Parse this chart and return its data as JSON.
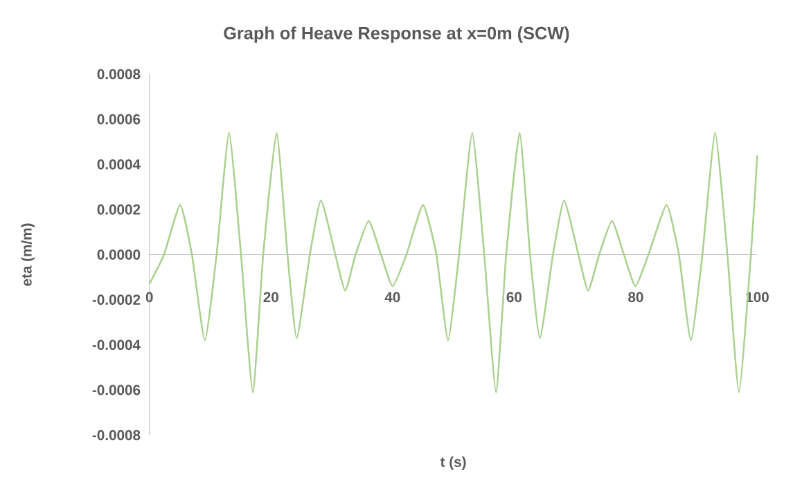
{
  "chart_data": {
    "type": "line",
    "title": "Graph of Heave Response at x=0m (SCW)",
    "xlabel": "t (s)",
    "ylabel": "eta (m/m)",
    "x": [
      0,
      2.4,
      5.05,
      6.99,
      9.12,
      11.05,
      13.1,
      15.07,
      17.01,
      18.72,
      20.92,
      22.71,
      24.23,
      26.39,
      28.22,
      30.58,
      32.21,
      33.91,
      36.08,
      38.1,
      40.0,
      42.28,
      45.01,
      47.21,
      49.12,
      50.94,
      53.1,
      55.08,
      57.02,
      58.69,
      60.9,
      62.61,
      64.23,
      66.39,
      68.22,
      70.57,
      72.17,
      73.99,
      76.08,
      78.06,
      79.95,
      82.09,
      85.08,
      87.1,
      89.07,
      90.97,
      93.06,
      95.08,
      96.98,
      98.95,
      100
    ],
    "series": [
      {
        "color": "#a9d18e",
        "values": [
          -0.00013,
          0,
          0.00022,
          0,
          -0.00038,
          0,
          0.00054,
          0,
          -0.00061,
          0,
          0.00054,
          0,
          -0.00037,
          0,
          0.00024,
          0,
          -0.00016,
          0,
          0.00015,
          0,
          -0.00014,
          0,
          0.00022,
          0,
          -0.00038,
          0,
          0.00054,
          0,
          -0.00061,
          0,
          0.00054,
          0,
          -0.00037,
          0,
          0.00024,
          0,
          -0.00016,
          0,
          0.00015,
          0,
          -0.00014,
          0,
          0.00022,
          0,
          -0.00038,
          0,
          0.00054,
          0,
          -0.00061,
          0,
          0.00044
        ]
      }
    ],
    "xlim": [
      0,
      100
    ],
    "xticks": [
      0,
      20,
      40,
      60,
      80,
      100
    ],
    "ylim": [
      -0.0008,
      0.0008
    ],
    "yticks": [
      -0.0008,
      -0.0006,
      -0.0004,
      -0.0002,
      {
        "value": 0,
        "label": "0.0000"
      },
      0.0002,
      0.0004,
      0.0006,
      0.0008
    ]
  }
}
